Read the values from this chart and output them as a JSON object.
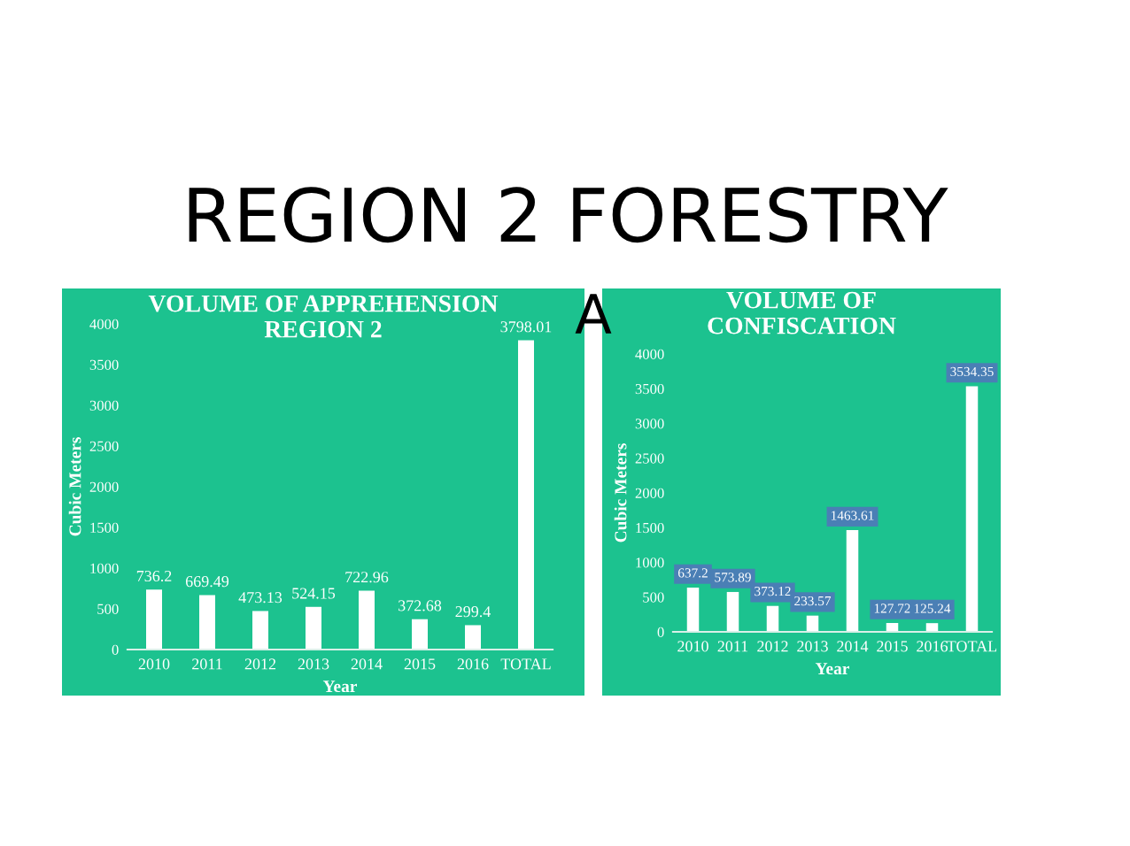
{
  "chart_data": [
    {
      "type": "bar",
      "title": "VOLUME OF APPREHENSION\nREGION 2",
      "xlabel": "Year",
      "ylabel": "Cubic Meters",
      "categories": [
        "2010",
        "2011",
        "2012",
        "2013",
        "2014",
        "2015",
        "2016",
        "TOTAL"
      ],
      "series": [
        {
          "color": "#ffffff",
          "values": [
            736.2,
            669.49,
            473.13,
            524.15,
            722.96,
            372.68,
            299.4,
            3798.01
          ]
        }
      ],
      "ylim": [
        0,
        4000
      ],
      "yticks": [
        0,
        500,
        1000,
        1500,
        2000,
        2500,
        3000,
        3500,
        4000
      ],
      "data_labels": true,
      "grid": false,
      "legend": false,
      "annotations": [
        "REGION 2 FORESTRY",
        "A"
      ]
    },
    {
      "type": "bar",
      "title": "VOLUME OF\nCONFISCATION",
      "xlabel": "Year",
      "ylabel": "Cubic Meters",
      "categories": [
        "2010",
        "2011",
        "2012",
        "2013",
        "2014",
        "2015",
        "2016",
        "TOTAL"
      ],
      "series": [
        {
          "color": "#ffffff",
          "values": [
            637.2,
            573.89,
            373.12,
            233.57,
            1463.61,
            127.72,
            125.24,
            3534.35
          ]
        }
      ],
      "ylim": [
        0,
        4000
      ],
      "yticks": [
        0,
        500,
        1000,
        1500,
        2000,
        2500,
        3000,
        3500,
        4000
      ],
      "data_labels": true,
      "grid": false,
      "legend": false
    }
  ]
}
